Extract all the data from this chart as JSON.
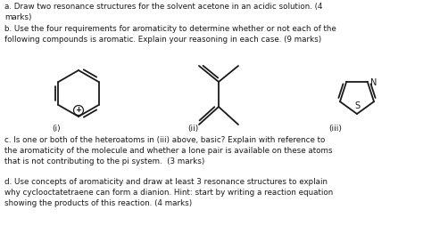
{
  "background_color": "#ffffff",
  "text_color": "#1a1a1a",
  "figsize": [
    4.74,
    2.63
  ],
  "dpi": 100,
  "para_a": "a. Draw two resonance structures for the solvent acetone in an acidic solution. (4\nmarks)",
  "para_b": "b. Use the four requirements for aromaticity to determine whether or not each of the\nfollowing compounds is aromatic. Explain your reasoning in each case. (9 marks)",
  "para_c": "c. Is one or both of the heteroatoms in (iii) above, basic? Explain with reference to\nthe aromaticity of the molecule and whether a lone pair is available on these atoms\nthat is not contributing to the pi system.  (3 marks)",
  "para_d": "d. Use concepts of aromaticity and draw at least 3 resonance structures to explain\nwhy cyclooctatetraene can form a dianion. Hint: start by writing a reaction equation\nshowing the products of this reaction. (4 marks)",
  "label_i": "(i)",
  "label_ii": "(ii)",
  "label_iii": "(iii)",
  "font_size_text": 6.3,
  "font_size_label": 6.5,
  "font_size_atom": 7.0
}
